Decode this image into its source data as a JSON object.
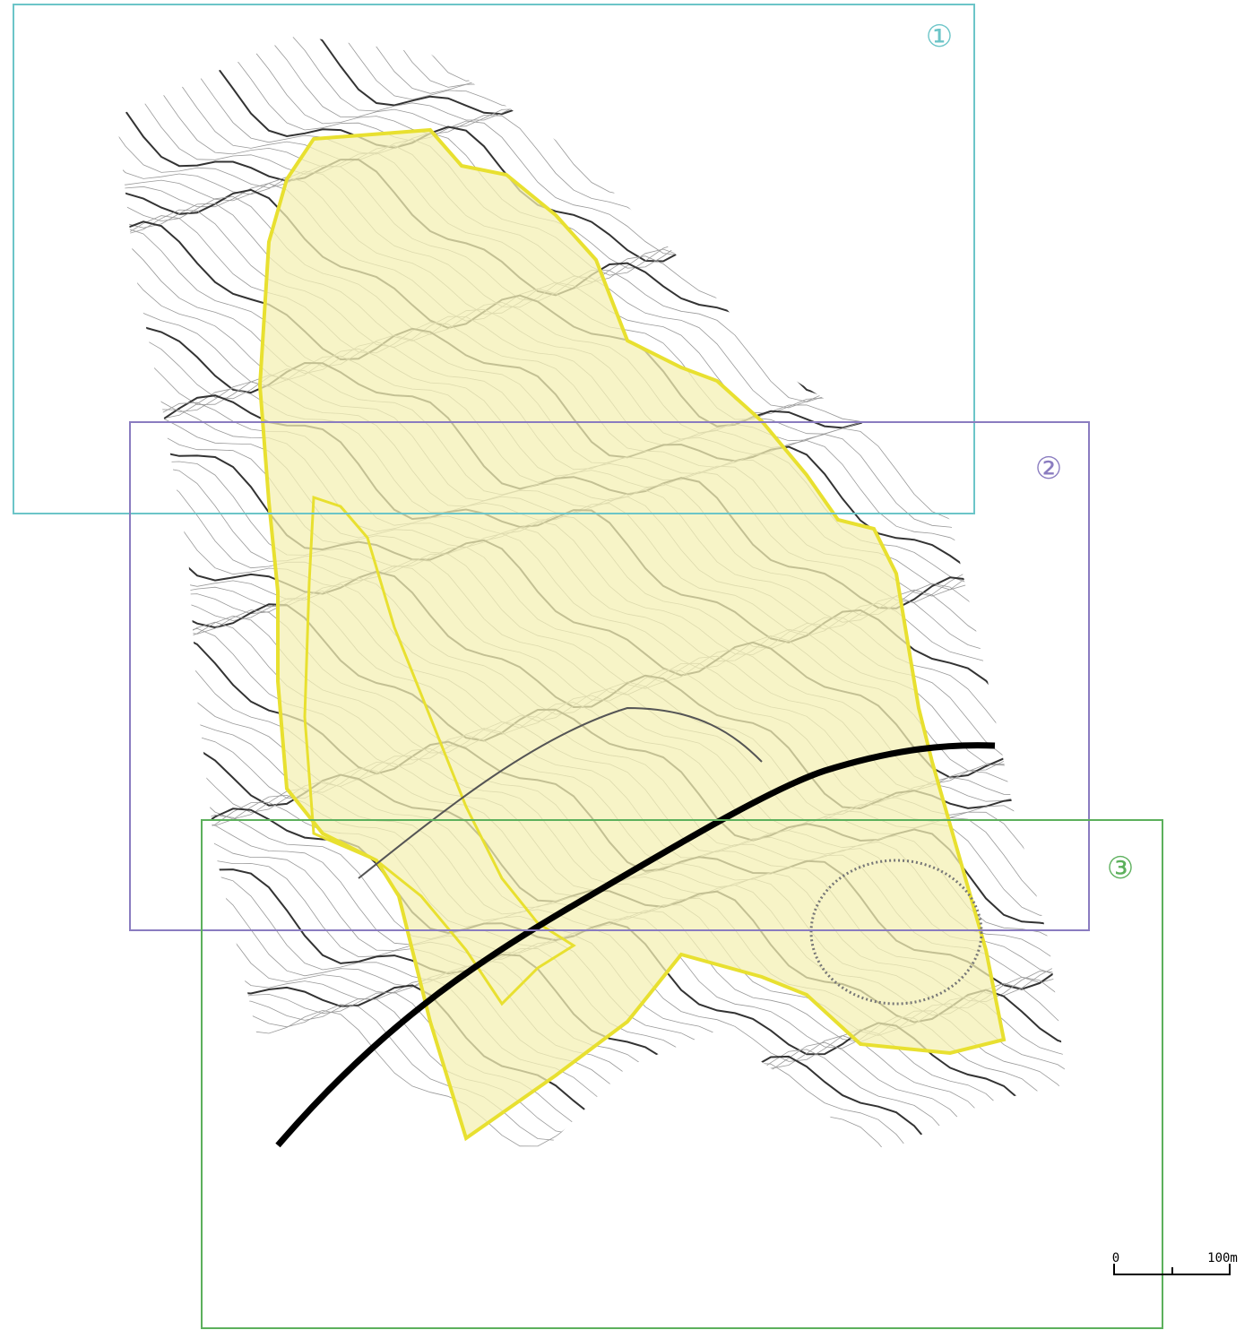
{
  "regions": [
    {
      "label": "①"
    },
    {
      "label": "②"
    },
    {
      "label": "③"
    }
  ],
  "scale_bar": {
    "start_label": "0",
    "end_label": "100m"
  }
}
